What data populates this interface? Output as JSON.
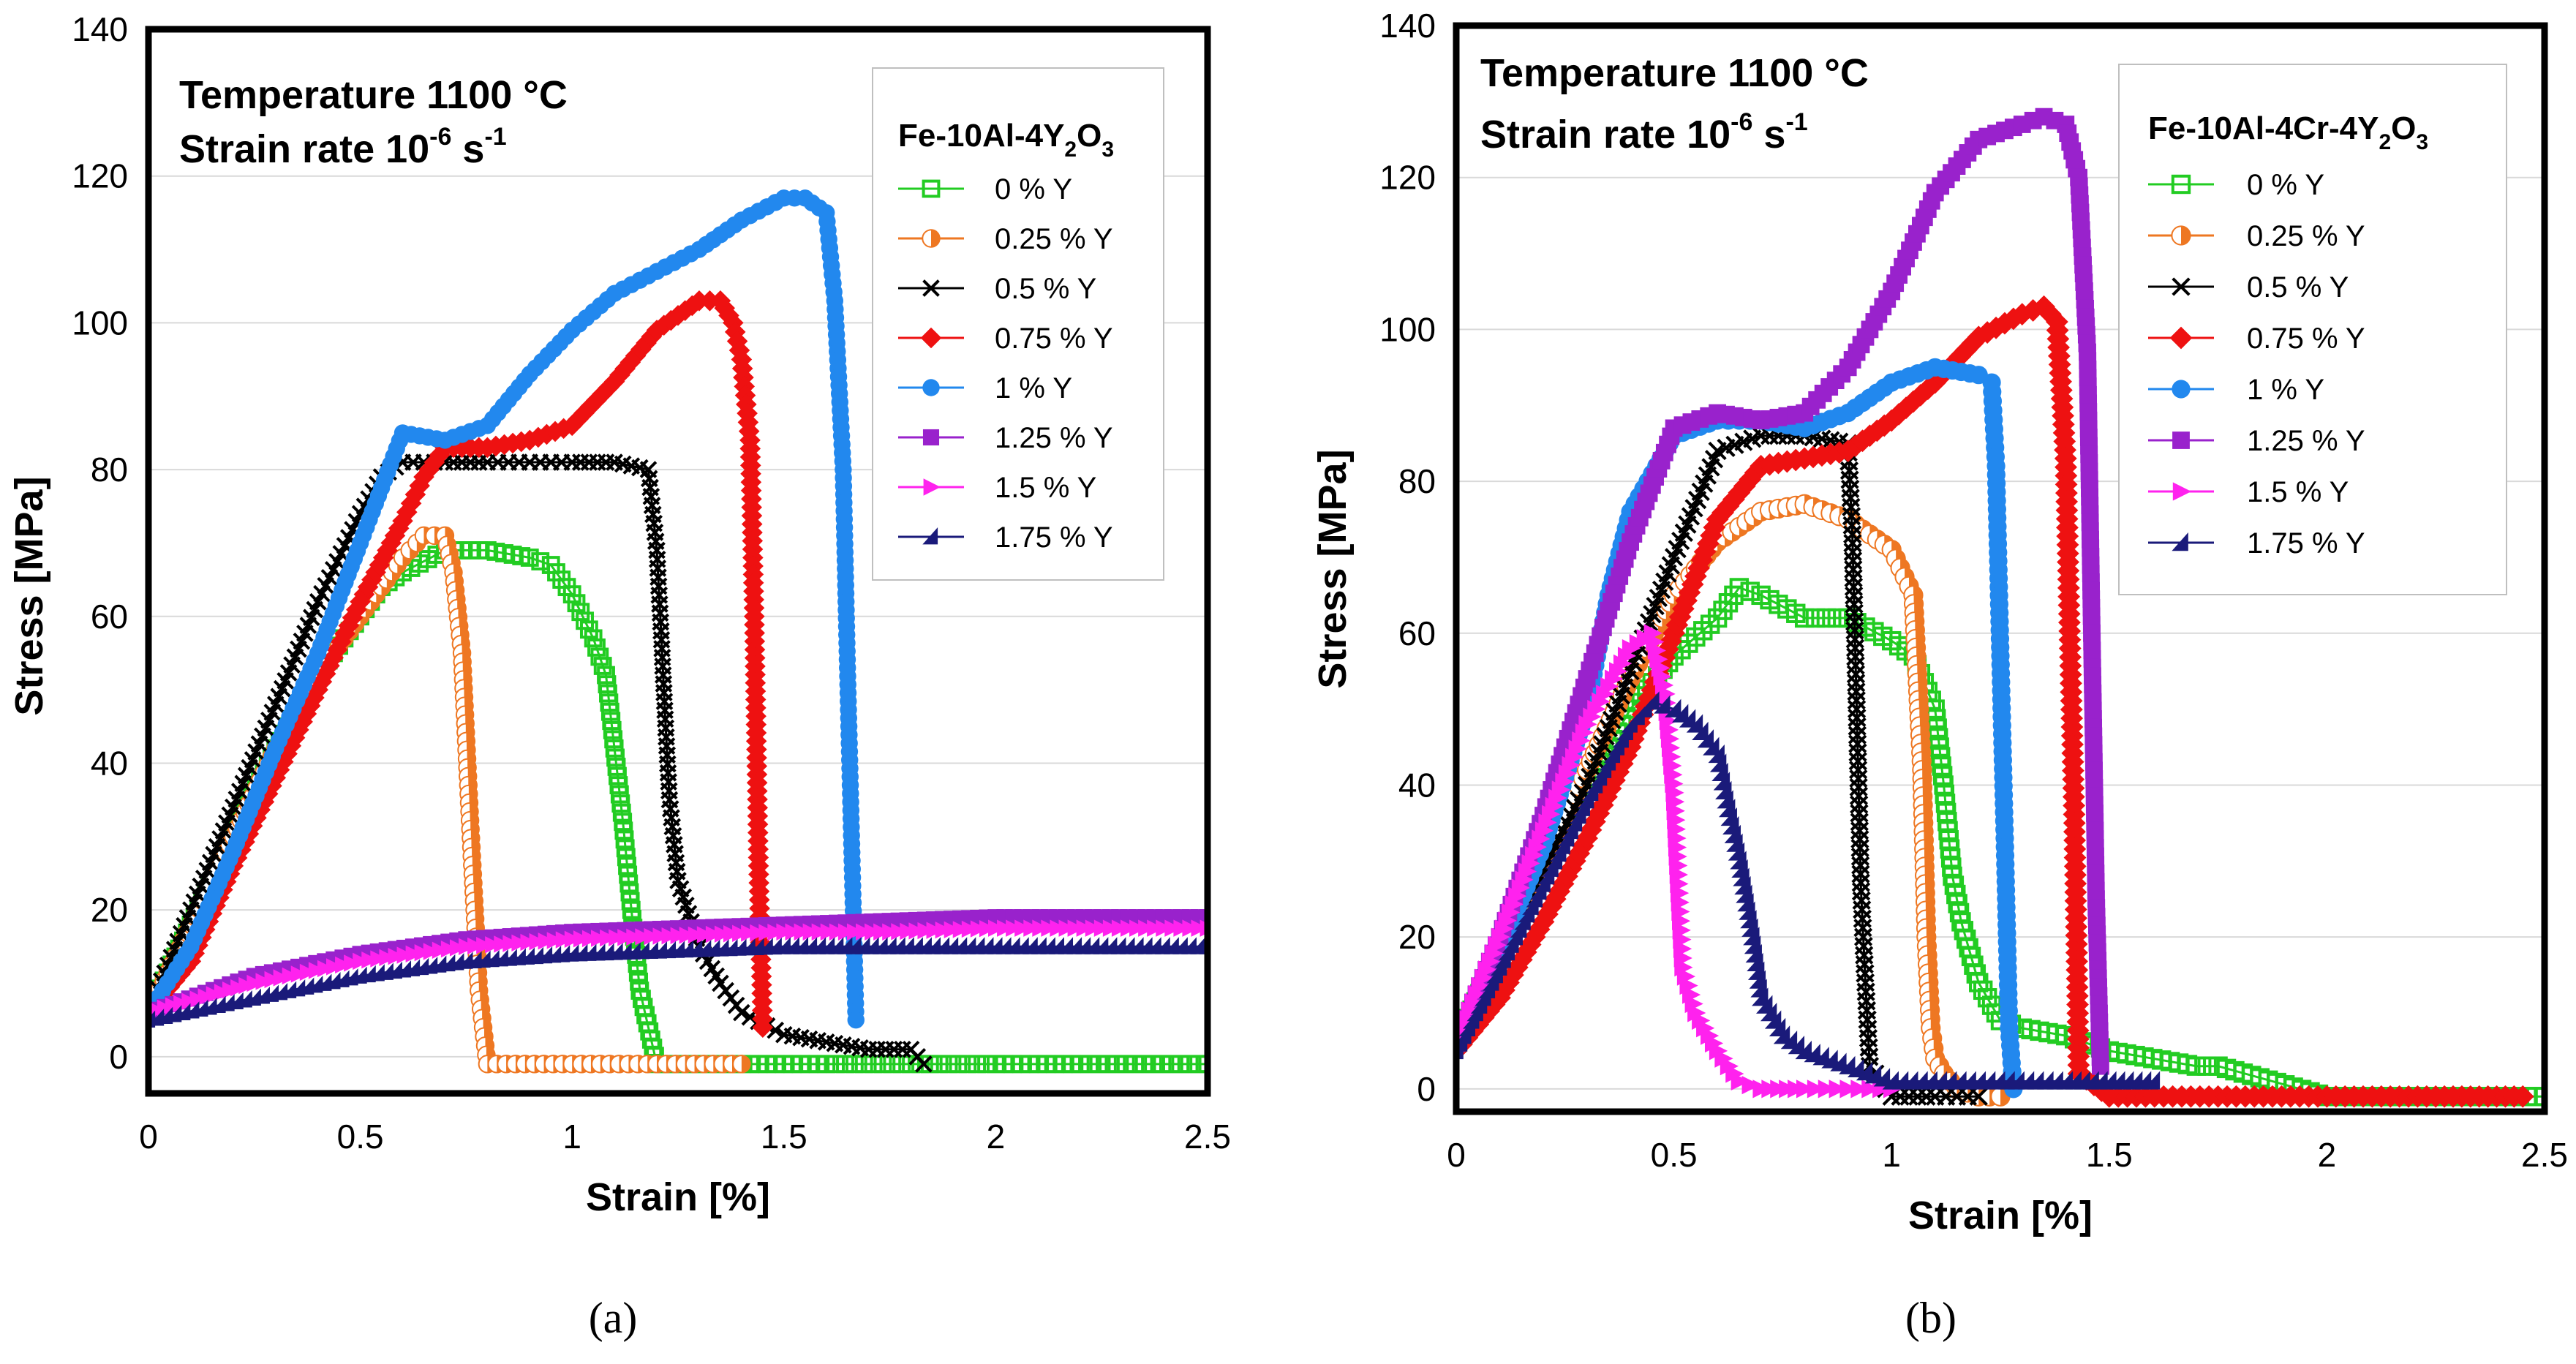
{
  "chart_data": [
    {
      "type": "line",
      "panel_label": "(a)",
      "title_line1": "Temperature 1100 °C",
      "title_line2_prefix": "Strain rate 10",
      "title_line2_exp": "-6",
      "title_line2_unit": " s",
      "title_line2_unit_exp": "-1",
      "xlabel": "Strain [%]",
      "ylabel": "Stress [MPa]",
      "xlim": [
        0,
        2.5
      ],
      "ylim": [
        -5,
        140
      ],
      "xticks": [
        0,
        0.5,
        1,
        1.5,
        2,
        2.5
      ],
      "xtick_labels": [
        "0",
        "0.5",
        "1",
        "1.5",
        "2",
        "2.5"
      ],
      "yticks": [
        0,
        20,
        40,
        60,
        80,
        100,
        120,
        140
      ],
      "ytick_labels": [
        "0",
        "20",
        "40",
        "60",
        "80",
        "100",
        "120",
        "140"
      ],
      "grid": true,
      "legend_position": "top-right",
      "legend_title_parts": [
        "Fe-10Al-4Y",
        "2",
        "O",
        "3"
      ],
      "series": [
        {
          "name": "0 % Y",
          "color": "#22cc22",
          "marker": "open-square",
          "x": [
            0,
            0.1,
            0.2,
            0.3,
            0.4,
            0.5,
            0.55,
            0.6,
            0.7,
            0.8,
            0.9,
            0.95,
            1.0,
            1.05,
            1.08,
            1.1,
            1.12,
            1.14,
            1.16,
            1.2,
            1.4,
            1.6,
            1.8,
            2.0,
            2.2,
            2.5
          ],
          "y": [
            6,
            18,
            30,
            42,
            52,
            60,
            64,
            66,
            69,
            69,
            68,
            67,
            63,
            57,
            52,
            42,
            32,
            20,
            9,
            -1,
            -1,
            -1,
            -1,
            -1,
            -1,
            -1
          ]
        },
        {
          "name": "0.25 % Y",
          "color": "#ee7722",
          "marker": "half-circle",
          "x": [
            0,
            0.1,
            0.2,
            0.3,
            0.4,
            0.5,
            0.6,
            0.65,
            0.7,
            0.72,
            0.74,
            0.75,
            0.76,
            0.77,
            0.78,
            0.8,
            1.0,
            1.2,
            1.4
          ],
          "y": [
            6,
            18,
            30,
            42,
            52,
            60,
            68,
            71,
            71,
            66,
            55,
            43,
            31,
            20,
            9,
            -1,
            -1,
            -1,
            -1
          ]
        },
        {
          "name": "0.5 % Y",
          "color": "#000000",
          "marker": "cross",
          "x": [
            0,
            0.1,
            0.2,
            0.3,
            0.4,
            0.5,
            0.55,
            0.6,
            0.7,
            0.8,
            0.9,
            1.0,
            1.1,
            1.18,
            1.2,
            1.21,
            1.22,
            1.23,
            1.25,
            1.3,
            1.35,
            1.4,
            1.5,
            1.6,
            1.7,
            1.8,
            1.83
          ],
          "y": [
            6,
            20,
            34,
            48,
            62,
            74,
            79,
            81,
            81,
            81,
            81,
            81,
            81,
            80,
            69,
            58,
            46,
            35,
            24,
            15,
            10,
            6,
            3,
            2,
            1,
            1,
            -1
          ]
        },
        {
          "name": "0.75 % Y",
          "color": "#ee1111",
          "marker": "diamond",
          "x": [
            0,
            0.1,
            0.2,
            0.3,
            0.4,
            0.5,
            0.6,
            0.65,
            0.7,
            0.8,
            0.9,
            1.0,
            1.1,
            1.2,
            1.3,
            1.35,
            1.38,
            1.4,
            1.42,
            1.43,
            1.44,
            1.45
          ],
          "y": [
            6,
            13,
            26,
            38,
            50,
            62,
            73,
            79,
            83,
            83,
            84,
            86,
            92,
            99,
            103,
            103,
            100,
            95,
            84,
            60,
            26,
            4
          ]
        },
        {
          "name": "1 % Y",
          "color": "#2288ee",
          "marker": "circle",
          "x": [
            0,
            0.1,
            0.2,
            0.3,
            0.4,
            0.5,
            0.6,
            0.7,
            0.8,
            0.9,
            1.0,
            1.1,
            1.2,
            1.3,
            1.4,
            1.5,
            1.55,
            1.6,
            1.62,
            1.64,
            1.65,
            1.66,
            1.67
          ],
          "y": [
            6,
            15,
            28,
            42,
            55,
            70,
            85,
            84,
            86,
            93,
            99,
            104,
            107,
            110,
            114,
            117,
            117,
            115,
            103,
            80,
            53,
            29,
            5
          ]
        },
        {
          "name": "1.25 % Y",
          "color": "#9922cc",
          "marker": "square",
          "x": [
            0,
            0.25,
            0.5,
            0.75,
            1.0,
            1.25,
            1.5,
            1.75,
            2.0,
            2.25,
            2.5
          ],
          "y": [
            6,
            11,
            14,
            16,
            17,
            17.5,
            18,
            18.5,
            19,
            19,
            19
          ]
        },
        {
          "name": "1.5 % Y",
          "color": "#ff22ee",
          "marker": "triangle-right",
          "x": [
            0,
            0.25,
            0.5,
            0.75,
            1.0,
            1.25,
            1.5,
            1.75,
            2.0,
            2.25,
            2.5
          ],
          "y": [
            6,
            10,
            13,
            15,
            16,
            16.5,
            17,
            17,
            17.5,
            17.5,
            17.5
          ]
        },
        {
          "name": "1.75 % Y",
          "color": "#1a1a7a",
          "marker": "triangle",
          "x": [
            0,
            0.25,
            0.5,
            0.75,
            1.0,
            1.25,
            1.5,
            1.75,
            2.0,
            2.25,
            2.5
          ],
          "y": [
            5,
            8,
            11,
            13,
            14,
            14.5,
            15,
            15,
            15,
            15,
            15
          ]
        }
      ]
    },
    {
      "type": "line",
      "panel_label": "(b)",
      "title_line1": "Temperature 1100 °C",
      "title_line2_prefix": "Strain rate 10",
      "title_line2_exp": "-6",
      "title_line2_unit": " s",
      "title_line2_unit_exp": "-1",
      "xlabel": "Strain [%]",
      "ylabel": "Stress [MPa]",
      "xlim": [
        0,
        2.5
      ],
      "ylim": [
        -3,
        140
      ],
      "xticks": [
        0,
        0.5,
        1,
        1.5,
        2,
        2.5
      ],
      "xtick_labels": [
        "0",
        "0.5",
        "1",
        "1.5",
        "2",
        "2.5"
      ],
      "yticks": [
        0,
        20,
        40,
        60,
        80,
        100,
        120,
        140
      ],
      "ytick_labels": [
        "0",
        "20",
        "40",
        "60",
        "80",
        "100",
        "120",
        "140"
      ],
      "grid": true,
      "legend_position": "top-right",
      "legend_title_parts": [
        "Fe-10Al-4Cr-4Y",
        "2",
        "O",
        "3"
      ],
      "series": [
        {
          "name": "0 % Y",
          "color": "#22cc22",
          "marker": "open-square",
          "x": [
            0,
            0.1,
            0.2,
            0.3,
            0.4,
            0.5,
            0.6,
            0.65,
            0.7,
            0.8,
            0.9,
            1.0,
            1.05,
            1.1,
            1.12,
            1.14,
            1.16,
            1.2,
            1.25,
            1.3,
            1.4,
            1.5,
            1.6,
            1.7,
            1.75,
            2.0,
            2.5
          ],
          "y": [
            6,
            18,
            30,
            40,
            50,
            57,
            62,
            66,
            65,
            62,
            62,
            59,
            57,
            50,
            40,
            28,
            22,
            14,
            9,
            8,
            7,
            5,
            4,
            3,
            3,
            -1,
            -1
          ]
        },
        {
          "name": "0.25 % Y",
          "color": "#ee7722",
          "marker": "half-circle",
          "x": [
            0,
            0.1,
            0.2,
            0.3,
            0.4,
            0.5,
            0.6,
            0.7,
            0.8,
            0.9,
            1.0,
            1.05,
            1.07,
            1.08,
            1.09,
            1.1,
            1.12,
            1.15,
            1.2,
            1.25
          ],
          "y": [
            6,
            18,
            30,
            42,
            54,
            65,
            72,
            76,
            77,
            75,
            71,
            65,
            42,
            20,
            8,
            4,
            2,
            0,
            -1,
            -1
          ]
        },
        {
          "name": "0.5 % Y",
          "color": "#000000",
          "marker": "cross",
          "x": [
            0,
            0.1,
            0.2,
            0.3,
            0.4,
            0.5,
            0.6,
            0.7,
            0.8,
            0.9,
            0.91,
            0.92,
            0.93,
            0.94,
            0.95,
            1.0,
            1.1,
            1.2
          ],
          "y": [
            6,
            17,
            29,
            40,
            55,
            70,
            84,
            86,
            86,
            85,
            73,
            50,
            26,
            14,
            3,
            -1,
            -1,
            -1
          ]
        },
        {
          "name": "0.75 % Y",
          "color": "#ee1111",
          "marker": "diamond",
          "x": [
            0,
            0.1,
            0.2,
            0.3,
            0.4,
            0.5,
            0.6,
            0.7,
            0.8,
            0.9,
            1.0,
            1.1,
            1.2,
            1.3,
            1.35,
            1.38,
            1.4,
            1.41,
            1.42,
            1.43,
            1.5,
            1.75,
            2.0,
            2.25,
            2.45
          ],
          "y": [
            5,
            12,
            22,
            33,
            45,
            60,
            75,
            82,
            83,
            84,
            88,
            93,
            99,
            102,
            103,
            101,
            83,
            58,
            35,
            2,
            -1,
            -1,
            -1,
            -1,
            -1
          ]
        },
        {
          "name": "1 % Y",
          "color": "#2288ee",
          "marker": "circle",
          "x": [
            0,
            0.1,
            0.2,
            0.3,
            0.35,
            0.4,
            0.5,
            0.6,
            0.7,
            0.8,
            0.9,
            1.0,
            1.1,
            1.2,
            1.23,
            1.24,
            1.25,
            1.26,
            1.27,
            1.28
          ],
          "y": [
            6,
            18,
            32,
            50,
            65,
            76,
            86,
            88,
            88,
            87,
            89,
            93,
            95,
            94,
            93,
            82,
            57,
            33,
            8,
            0
          ]
        },
        {
          "name": "1.25 % Y",
          "color": "#9922cc",
          "marker": "square",
          "x": [
            0,
            0.1,
            0.2,
            0.3,
            0.4,
            0.5,
            0.6,
            0.7,
            0.8,
            0.9,
            1.0,
            1.1,
            1.2,
            1.3,
            1.35,
            1.4,
            1.43,
            1.45,
            1.46,
            1.47,
            1.48
          ],
          "y": [
            6,
            20,
            36,
            54,
            72,
            87,
            89,
            88,
            89,
            95,
            105,
            118,
            125,
            127,
            128,
            127,
            120,
            97,
            60,
            25,
            3
          ]
        },
        {
          "name": "1.5 % Y",
          "color": "#ff22ee",
          "marker": "triangle-right",
          "x": [
            0,
            0.1,
            0.2,
            0.3,
            0.4,
            0.45,
            0.48,
            0.5,
            0.51,
            0.52,
            0.55,
            0.6,
            0.65,
            0.7,
            0.8,
            0.9,
            1.0
          ],
          "y": [
            6,
            20,
            34,
            48,
            58,
            60,
            52,
            39,
            27,
            16,
            10,
            5,
            1,
            0,
            0,
            0,
            0
          ]
        },
        {
          "name": "1.75 % Y",
          "color": "#1a1a7a",
          "marker": "triangle",
          "x": [
            0,
            0.1,
            0.2,
            0.3,
            0.4,
            0.45,
            0.5,
            0.55,
            0.6,
            0.62,
            0.65,
            0.68,
            0.7,
            0.75,
            0.8,
            0.9,
            1.0,
            1.2,
            1.4,
            1.6
          ],
          "y": [
            5,
            16,
            27,
            38,
            48,
            51,
            50,
            48,
            44,
            38,
            30,
            20,
            12,
            7,
            5,
            3,
            1,
            1,
            1,
            1
          ]
        }
      ]
    }
  ]
}
